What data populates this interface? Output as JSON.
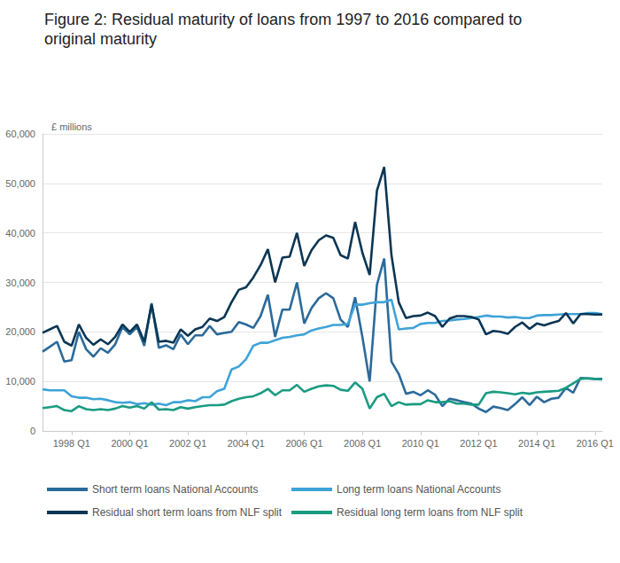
{
  "chart_data": {
    "type": "line",
    "title": "Figure 2: Residual maturity of loans from 1997 to 2016 compared to original maturity",
    "y_label": "£ millions",
    "categories": [
      null,
      null,
      null,
      null,
      "1998 Q1",
      null,
      null,
      null,
      null,
      null,
      null,
      null,
      "2000 Q1",
      null,
      null,
      null,
      null,
      null,
      null,
      null,
      "2002 Q1",
      null,
      null,
      null,
      null,
      null,
      null,
      null,
      "2004 Q1",
      null,
      null,
      null,
      null,
      null,
      null,
      null,
      "2006 Q1",
      null,
      null,
      null,
      null,
      null,
      null,
      null,
      "2008 Q1",
      null,
      null,
      null,
      null,
      null,
      null,
      null,
      "2010 Q1",
      null,
      null,
      null,
      null,
      null,
      null,
      null,
      "2012 Q1",
      null,
      null,
      null,
      null,
      null,
      null,
      null,
      "2014 Q1",
      null,
      null,
      null,
      null,
      null,
      null,
      null,
      "2016 Q1",
      null
    ],
    "series": [
      {
        "name": "Short term loans National Accounts",
        "color": "#2b6a9a",
        "values": [
          16000,
          17000,
          18000,
          14000,
          14300,
          20000,
          16500,
          15000,
          16700,
          15800,
          17500,
          21000,
          19500,
          21000,
          17200,
          25800,
          16800,
          17300,
          16500,
          19500,
          17500,
          19300,
          19300,
          21200,
          19500,
          19800,
          20000,
          22000,
          21500,
          20800,
          23200,
          27500,
          19000,
          24500,
          24500,
          30000,
          21700,
          24800,
          26800,
          27800,
          26800,
          22500,
          21000,
          27000,
          19000,
          10000,
          29500,
          34800,
          14000,
          11500,
          7500,
          7900,
          7200,
          8200,
          7300,
          5000,
          6500,
          6200,
          5800,
          5500,
          4500,
          3800,
          4900,
          4600,
          4200,
          5400,
          6800,
          5200,
          6900,
          5800,
          6500,
          6700,
          8700,
          7700,
          10700,
          10600,
          10500,
          10500
        ]
      },
      {
        "name": "Long term loans National Accounts",
        "color": "#3ea3d8",
        "values": [
          8400,
          8200,
          8200,
          8200,
          7000,
          6700,
          6700,
          6400,
          6500,
          6200,
          5800,
          5700,
          5800,
          5400,
          5600,
          5300,
          5500,
          5200,
          5800,
          5800,
          6200,
          6000,
          6800,
          6800,
          8000,
          8500,
          12400,
          13000,
          14500,
          17200,
          17800,
          17800,
          18300,
          18800,
          19000,
          19300,
          19500,
          20300,
          20700,
          21000,
          21400,
          21400,
          21600,
          25500,
          25500,
          25800,
          26000,
          26000,
          26500,
          20500,
          20700,
          20800,
          21600,
          21800,
          21800,
          22200,
          22300,
          22500,
          22600,
          22800,
          23000,
          23300,
          23100,
          23100,
          22900,
          23000,
          22800,
          22800,
          23300,
          23400,
          23400,
          23500,
          23600,
          23600,
          23600,
          23800,
          23800,
          23600
        ]
      },
      {
        "name": "Residual short term loans from NLF split",
        "color": "#0b3654",
        "values": [
          19800,
          20500,
          21200,
          18000,
          17200,
          21500,
          18800,
          17400,
          18500,
          17500,
          19000,
          21500,
          20000,
          21500,
          18000,
          25500,
          18000,
          18200,
          17800,
          20500,
          19200,
          20500,
          21000,
          22700,
          22200,
          23000,
          26000,
          28500,
          29000,
          31000,
          33500,
          36700,
          30000,
          35000,
          35200,
          40000,
          33300,
          36500,
          38500,
          39500,
          39000,
          35500,
          34800,
          42200,
          36000,
          31500,
          48500,
          53300,
          35500,
          26000,
          22800,
          23200,
          23300,
          23900,
          23200,
          21000,
          22700,
          23200,
          23200,
          23000,
          22500,
          19500,
          20200,
          20000,
          19600,
          21000,
          21900,
          20600,
          21700,
          21300,
          21800,
          22200,
          23800,
          21700,
          23600,
          23600,
          23500,
          23500
        ]
      },
      {
        "name": "Residual long term loans from NLF split",
        "color": "#1a9b82",
        "values": [
          4600,
          4800,
          5000,
          4200,
          4000,
          5000,
          4400,
          4200,
          4400,
          4200,
          4500,
          5000,
          4700,
          5000,
          4500,
          5800,
          4300,
          4400,
          4200,
          4800,
          4500,
          4800,
          5000,
          5200,
          5200,
          5300,
          6000,
          6500,
          6800,
          7000,
          7600,
          8500,
          7200,
          8200,
          8200,
          9300,
          7900,
          8500,
          9000,
          9200,
          9100,
          8300,
          8100,
          9800,
          8500,
          4500,
          6800,
          7500,
          5000,
          5800,
          5300,
          5400,
          5400,
          6200,
          5800,
          5800,
          6000,
          5500,
          5500,
          5300,
          5300,
          7600,
          7900,
          7800,
          7600,
          7400,
          7700,
          7500,
          7800,
          7900,
          8000,
          8100,
          8700,
          9600,
          10500,
          10600,
          10500,
          10400
        ]
      }
    ],
    "ylim": [
      0,
      60000
    ],
    "yticks": [
      0,
      {
        "value": 10000,
        "label": "10,000"
      },
      {
        "value": 20000,
        "label": "20,000"
      },
      {
        "value": 30000,
        "label": "30,000"
      },
      {
        "value": 40000,
        "label": "40,000"
      },
      {
        "value": 50000,
        "label": "50,000"
      },
      {
        "value": 60000,
        "label": "60,000"
      }
    ],
    "grid": true,
    "legend": "bottom"
  }
}
